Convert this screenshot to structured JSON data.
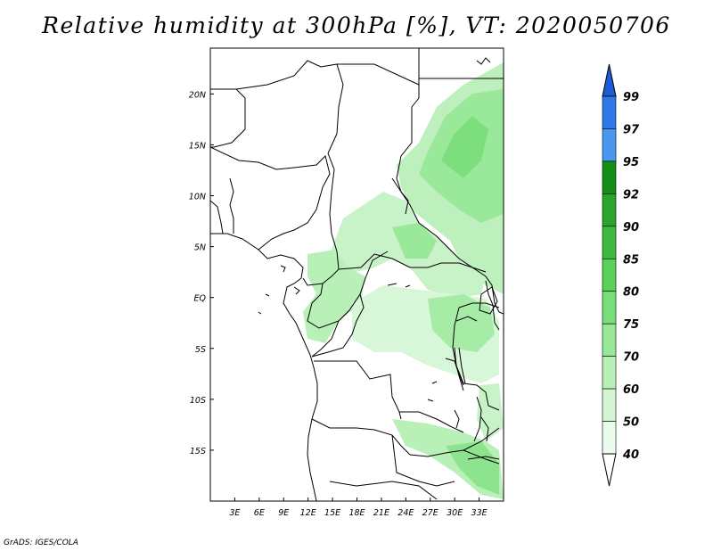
{
  "title": "Relative humidity at 300hPa [%], VT: 2020050706",
  "credit": "GrADS: IGES/COLA",
  "map": {
    "lon_range": [
      0,
      36
    ],
    "lat_range": [
      -20,
      24.5
    ],
    "lon_ticks": [
      "3E",
      "6E",
      "9E",
      "12E",
      "15E",
      "18E",
      "21E",
      "24E",
      "27E",
      "30E",
      "33E"
    ],
    "lat_ticks": [
      "20N",
      "15N",
      "10N",
      "5N",
      "EQ",
      "5S",
      "10S",
      "15S"
    ],
    "field": "relative humidity",
    "level": "300hPa",
    "units": "%",
    "valid_time": "2020050706"
  },
  "colorbar": {
    "labels": [
      "99",
      "97",
      "95",
      "92",
      "90",
      "85",
      "80",
      "75",
      "70",
      "60",
      "50",
      "40"
    ],
    "colors": [
      "#1c5ad6",
      "#2f78e6",
      "#4a97f0",
      "#12901a",
      "#2aa52a",
      "#3dba3d",
      "#5ad25a",
      "#78de78",
      "#98e898",
      "#b8f0b8",
      "#d4f6d4",
      "#ecfcec"
    ]
  },
  "colors": {
    "frame": "#000000",
    "ocean": "#ffffff",
    "border": "#000000"
  }
}
